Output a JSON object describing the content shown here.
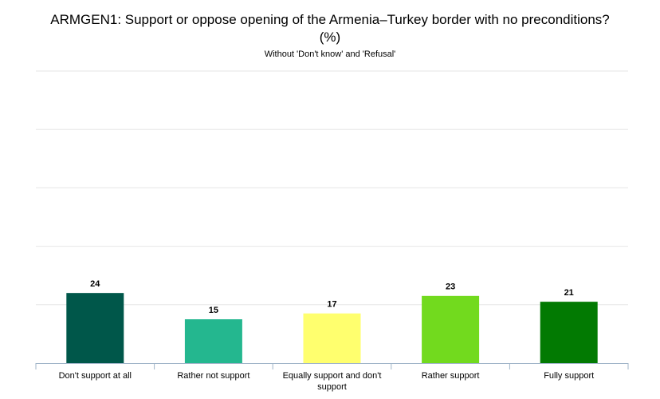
{
  "chart_data": {
    "type": "bar",
    "title": "ARMGEN1: Support or oppose opening of the Armenia–Turkey border with no preconditions? (%)",
    "subtitle": "Without 'Don't know' and 'Refusal'",
    "categories": [
      "Don't support at all",
      "Rather not support",
      "Equally support and don't support",
      "Rather support",
      "Fully support"
    ],
    "values": [
      24,
      15,
      17,
      23,
      21
    ],
    "colors": [
      "#00574a",
      "#24b78f",
      "#ffff6e",
      "#72da1e",
      "#027a02"
    ],
    "ylim": [
      0,
      100
    ],
    "yticks": [
      0,
      20,
      40,
      60,
      80,
      100
    ],
    "grid": true
  }
}
